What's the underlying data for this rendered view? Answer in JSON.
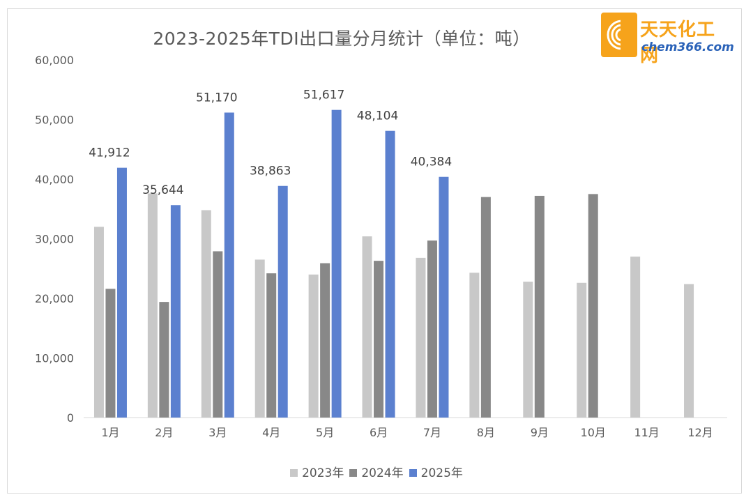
{
  "chart_data": {
    "type": "bar",
    "title": "2023-2025年TDI出口量分月统计（单位：吨）",
    "categories": [
      "1月",
      "2月",
      "3月",
      "4月",
      "5月",
      "6月",
      "7月",
      "8月",
      "9月",
      "10月",
      "11月",
      "12月"
    ],
    "ylim": [
      0,
      60000
    ],
    "y_ticks": [
      "0",
      "10,000",
      "20,000",
      "30,000",
      "40,000",
      "50,000",
      "60,000"
    ],
    "grid": false,
    "legend_position": "bottom",
    "series": [
      {
        "name": "2023年",
        "color": "#c8c8c8",
        "values": [
          32000,
          37600,
          34800,
          26500,
          24000,
          30400,
          26800,
          24300,
          22800,
          22600,
          27000,
          22400
        ]
      },
      {
        "name": "2024年",
        "color": "#888888",
        "values": [
          21600,
          19400,
          27900,
          24200,
          25900,
          26300,
          29700,
          37000,
          37200,
          37500,
          null,
          null
        ]
      },
      {
        "name": "2025年",
        "color": "#5b80cf",
        "values": [
          41912,
          35644,
          51170,
          38863,
          51617,
          48104,
          40384,
          null,
          null,
          null,
          null,
          null
        ]
      }
    ],
    "data_labels": {
      "series": "2025年",
      "labels": [
        "41,912",
        "35,644",
        "51,170",
        "38,863",
        "51,617",
        "48,104",
        "40,384"
      ]
    }
  },
  "logo": {
    "text_cn": "天天化工网",
    "text_en": "chem366.com"
  }
}
